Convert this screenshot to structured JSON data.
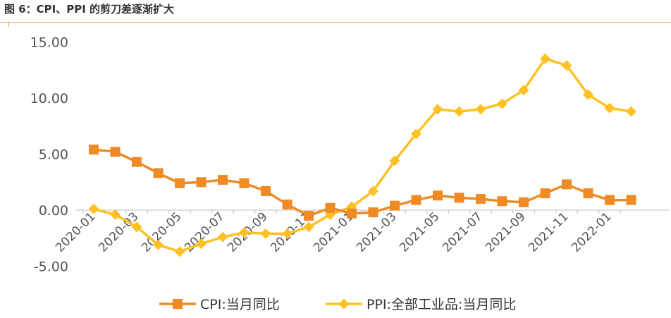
{
  "figure": {
    "title": "图 6：CPI、PPI 的剪刀差逐渐扩大"
  },
  "chart_data": {
    "type": "line",
    "title": "图 6：CPI、PPI 的剪刀差逐渐扩大",
    "xlabel": "",
    "ylabel": "",
    "ylim": [
      -5,
      15
    ],
    "y_ticks": [
      "-5.00",
      "0.00",
      "5.00",
      "10.00",
      "15.00"
    ],
    "y_tick_values": [
      -5,
      0,
      5,
      10,
      15
    ],
    "grid": false,
    "legend_position": "bottom",
    "x": [
      "2020-01",
      "2020-02",
      "2020-03",
      "2020-04",
      "2020-05",
      "2020-06",
      "2020-07",
      "2020-08",
      "2020-09",
      "2020-10",
      "2020-11",
      "2020-12",
      "2021-01",
      "2021-02",
      "2021-03",
      "2021-04",
      "2021-05",
      "2021-06",
      "2021-07",
      "2021-08",
      "2021-09",
      "2021-10",
      "2021-11",
      "2021-12",
      "2022-01",
      "2022-02"
    ],
    "x_tick_labels": [
      "2020-01",
      "",
      "2020-03",
      "",
      "2020-05",
      "",
      "2020-07",
      "",
      "2020-09",
      "",
      "2020-11",
      "",
      "2021-01",
      "",
      "2021-03",
      "",
      "2021-05",
      "",
      "2021-07",
      "",
      "2021-09",
      "",
      "2021-11",
      "",
      "2022-01",
      ""
    ],
    "series": [
      {
        "name": "CPI:当月同比",
        "color": "#F08A24",
        "marker": "square",
        "values": [
          5.4,
          5.2,
          4.3,
          3.3,
          2.4,
          2.5,
          2.7,
          2.4,
          1.7,
          0.5,
          -0.5,
          0.2,
          -0.3,
          -0.2,
          0.4,
          0.9,
          1.3,
          1.1,
          1.0,
          0.8,
          0.7,
          1.5,
          2.3,
          1.5,
          0.9,
          0.9
        ]
      },
      {
        "name": "PPI:全部工业品:当月同比",
        "color": "#FFC023",
        "marker": "diamond",
        "values": [
          0.1,
          -0.4,
          -1.5,
          -3.1,
          -3.7,
          -3.0,
          -2.4,
          -2.0,
          -2.1,
          -2.1,
          -1.5,
          -0.4,
          0.3,
          1.7,
          4.4,
          6.8,
          9.0,
          8.8,
          9.0,
          9.5,
          10.7,
          13.5,
          12.9,
          10.3,
          9.1,
          8.8
        ]
      }
    ]
  }
}
